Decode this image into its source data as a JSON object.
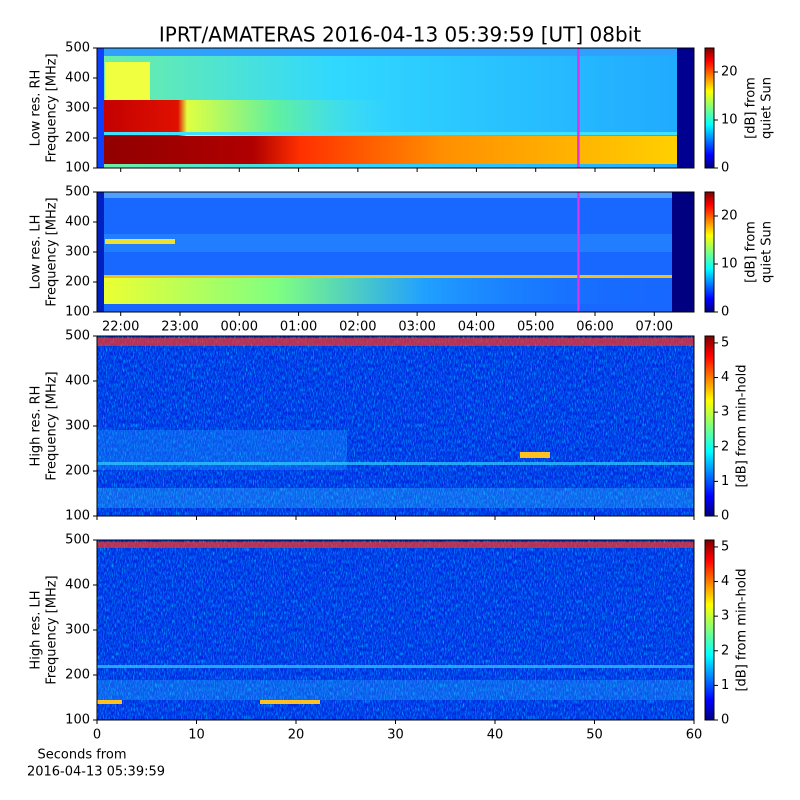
{
  "title": "IPRT/AMATERAS 2016-04-13 05:39:59 [UT]   08bit",
  "chart_data": [
    {
      "type": "heatmap",
      "ylabel": [
        "Low res. RH",
        "Frequency [MHz]"
      ],
      "xlim": [
        21.6,
        31.67
      ],
      "xticks": [
        22,
        23,
        24,
        25,
        26,
        27,
        28,
        29,
        30,
        31
      ],
      "ylim": [
        100,
        500
      ],
      "yticks": [
        100,
        200,
        300,
        400,
        500
      ],
      "marker": {
        "x": 29.72,
        "color": "#e030e8"
      },
      "colorbar": {
        "label": [
          "[dB] from",
          "quiet Sun"
        ],
        "lim": [
          0,
          25
        ],
        "ticks": [
          0,
          10,
          20
        ]
      }
    },
    {
      "type": "heatmap",
      "ylabel": [
        "Low res. LH",
        "Frequency [MHz]"
      ],
      "xlim": [
        21.6,
        31.67
      ],
      "xticks": [
        {
          "value": 22,
          "label": "22:00"
        },
        {
          "value": 23,
          "label": "23:00"
        },
        {
          "value": 24,
          "label": "00:00"
        },
        {
          "value": 25,
          "label": "01:00"
        },
        {
          "value": 26,
          "label": "02:00"
        },
        {
          "value": 27,
          "label": "03:00"
        },
        {
          "value": 28,
          "label": "04:00"
        },
        {
          "value": 29,
          "label": "05:00"
        },
        {
          "value": 30,
          "label": "06:00"
        },
        {
          "value": 31,
          "label": "07:00"
        }
      ],
      "ylim": [
        100,
        500
      ],
      "yticks": [
        100,
        200,
        300,
        400,
        500
      ],
      "marker": {
        "x": 29.72,
        "color": "#e030e8"
      },
      "colorbar": {
        "label": [
          "[dB] from",
          "quiet Sun"
        ],
        "lim": [
          0,
          25
        ],
        "ticks": [
          0,
          10,
          20
        ]
      }
    },
    {
      "type": "heatmap",
      "ylabel": [
        "High res. RH",
        "Frequency [MHz]"
      ],
      "xlim": [
        0,
        60
      ],
      "xticks": [
        0,
        10,
        20,
        30,
        40,
        50,
        60
      ],
      "ylim": [
        100,
        500
      ],
      "yticks": [
        100,
        200,
        300,
        400,
        500
      ],
      "colorbar": {
        "label": [
          "[dB] from min-hold"
        ],
        "lim": [
          0,
          5.2
        ],
        "ticks": [
          0,
          1,
          2,
          3,
          4,
          5
        ]
      }
    },
    {
      "type": "heatmap",
      "ylabel": [
        "High res. LH",
        "Frequency [MHz]"
      ],
      "xlim": [
        0,
        60
      ],
      "xticks": [
        0,
        10,
        20,
        30,
        40,
        50,
        60
      ],
      "show_xtick_labels": true,
      "xlabel": [
        "Seconds from",
        "2016-04-13 05:39:59"
      ],
      "ylim": [
        100,
        500
      ],
      "yticks": [
        100,
        200,
        300,
        400,
        500
      ],
      "colorbar": {
        "label": [
          "[dB] from min-hold"
        ],
        "lim": [
          0,
          5.2
        ],
        "ticks": [
          0,
          1,
          2,
          3,
          4,
          5
        ]
      }
    }
  ]
}
